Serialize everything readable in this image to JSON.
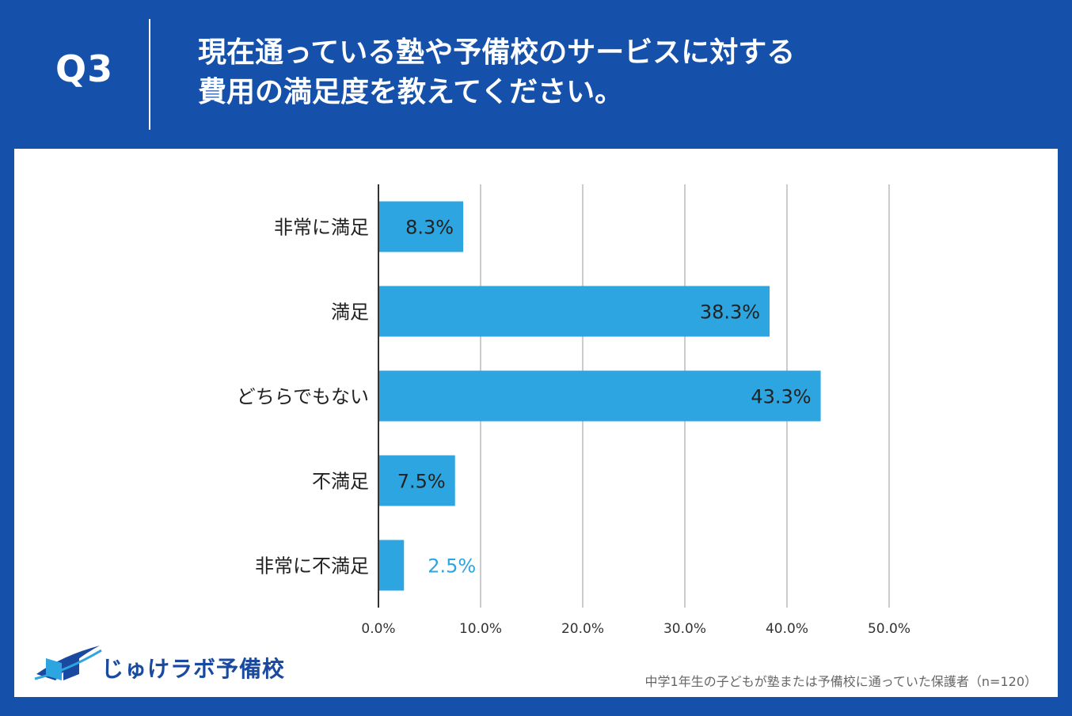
{
  "header": {
    "question_number": "Q3",
    "title_line1": "現在通っている塾や予備校のサービスに対する",
    "title_line2": "費用の満足度を教えてください。"
  },
  "brand": {
    "logo_icon": "open-book-swoosh-icon",
    "name": "じゅけラボ予備校"
  },
  "source_note": "中学1年生の子どもが塾または予備校に通っていた保護者（n=120）",
  "colors": {
    "background": "#1550aa",
    "bar": "#2ca5e0",
    "grid": "#cccccc",
    "outside_label": "#2ca5e0"
  },
  "chart_data": {
    "type": "bar",
    "orientation": "horizontal",
    "title": "現在通っている塾や予備校のサービスに対する費用の満足度を教えてください。",
    "categories": [
      "非常に満足",
      "満足",
      "どちらでもない",
      "不満足",
      "非常に不満足"
    ],
    "values": [
      8.3,
      38.3,
      43.3,
      7.5,
      2.5
    ],
    "value_labels": [
      "8.3%",
      "38.3%",
      "43.3%",
      "7.5%",
      "2.5%"
    ],
    "xlim": [
      0,
      50
    ],
    "xticks": [
      0,
      10,
      20,
      30,
      40,
      50
    ],
    "xtick_labels": [
      "0.0%",
      "10.0%",
      "20.0%",
      "30.0%",
      "40.0%",
      "50.0%"
    ],
    "grid": true,
    "xlabel": "",
    "ylabel": ""
  }
}
